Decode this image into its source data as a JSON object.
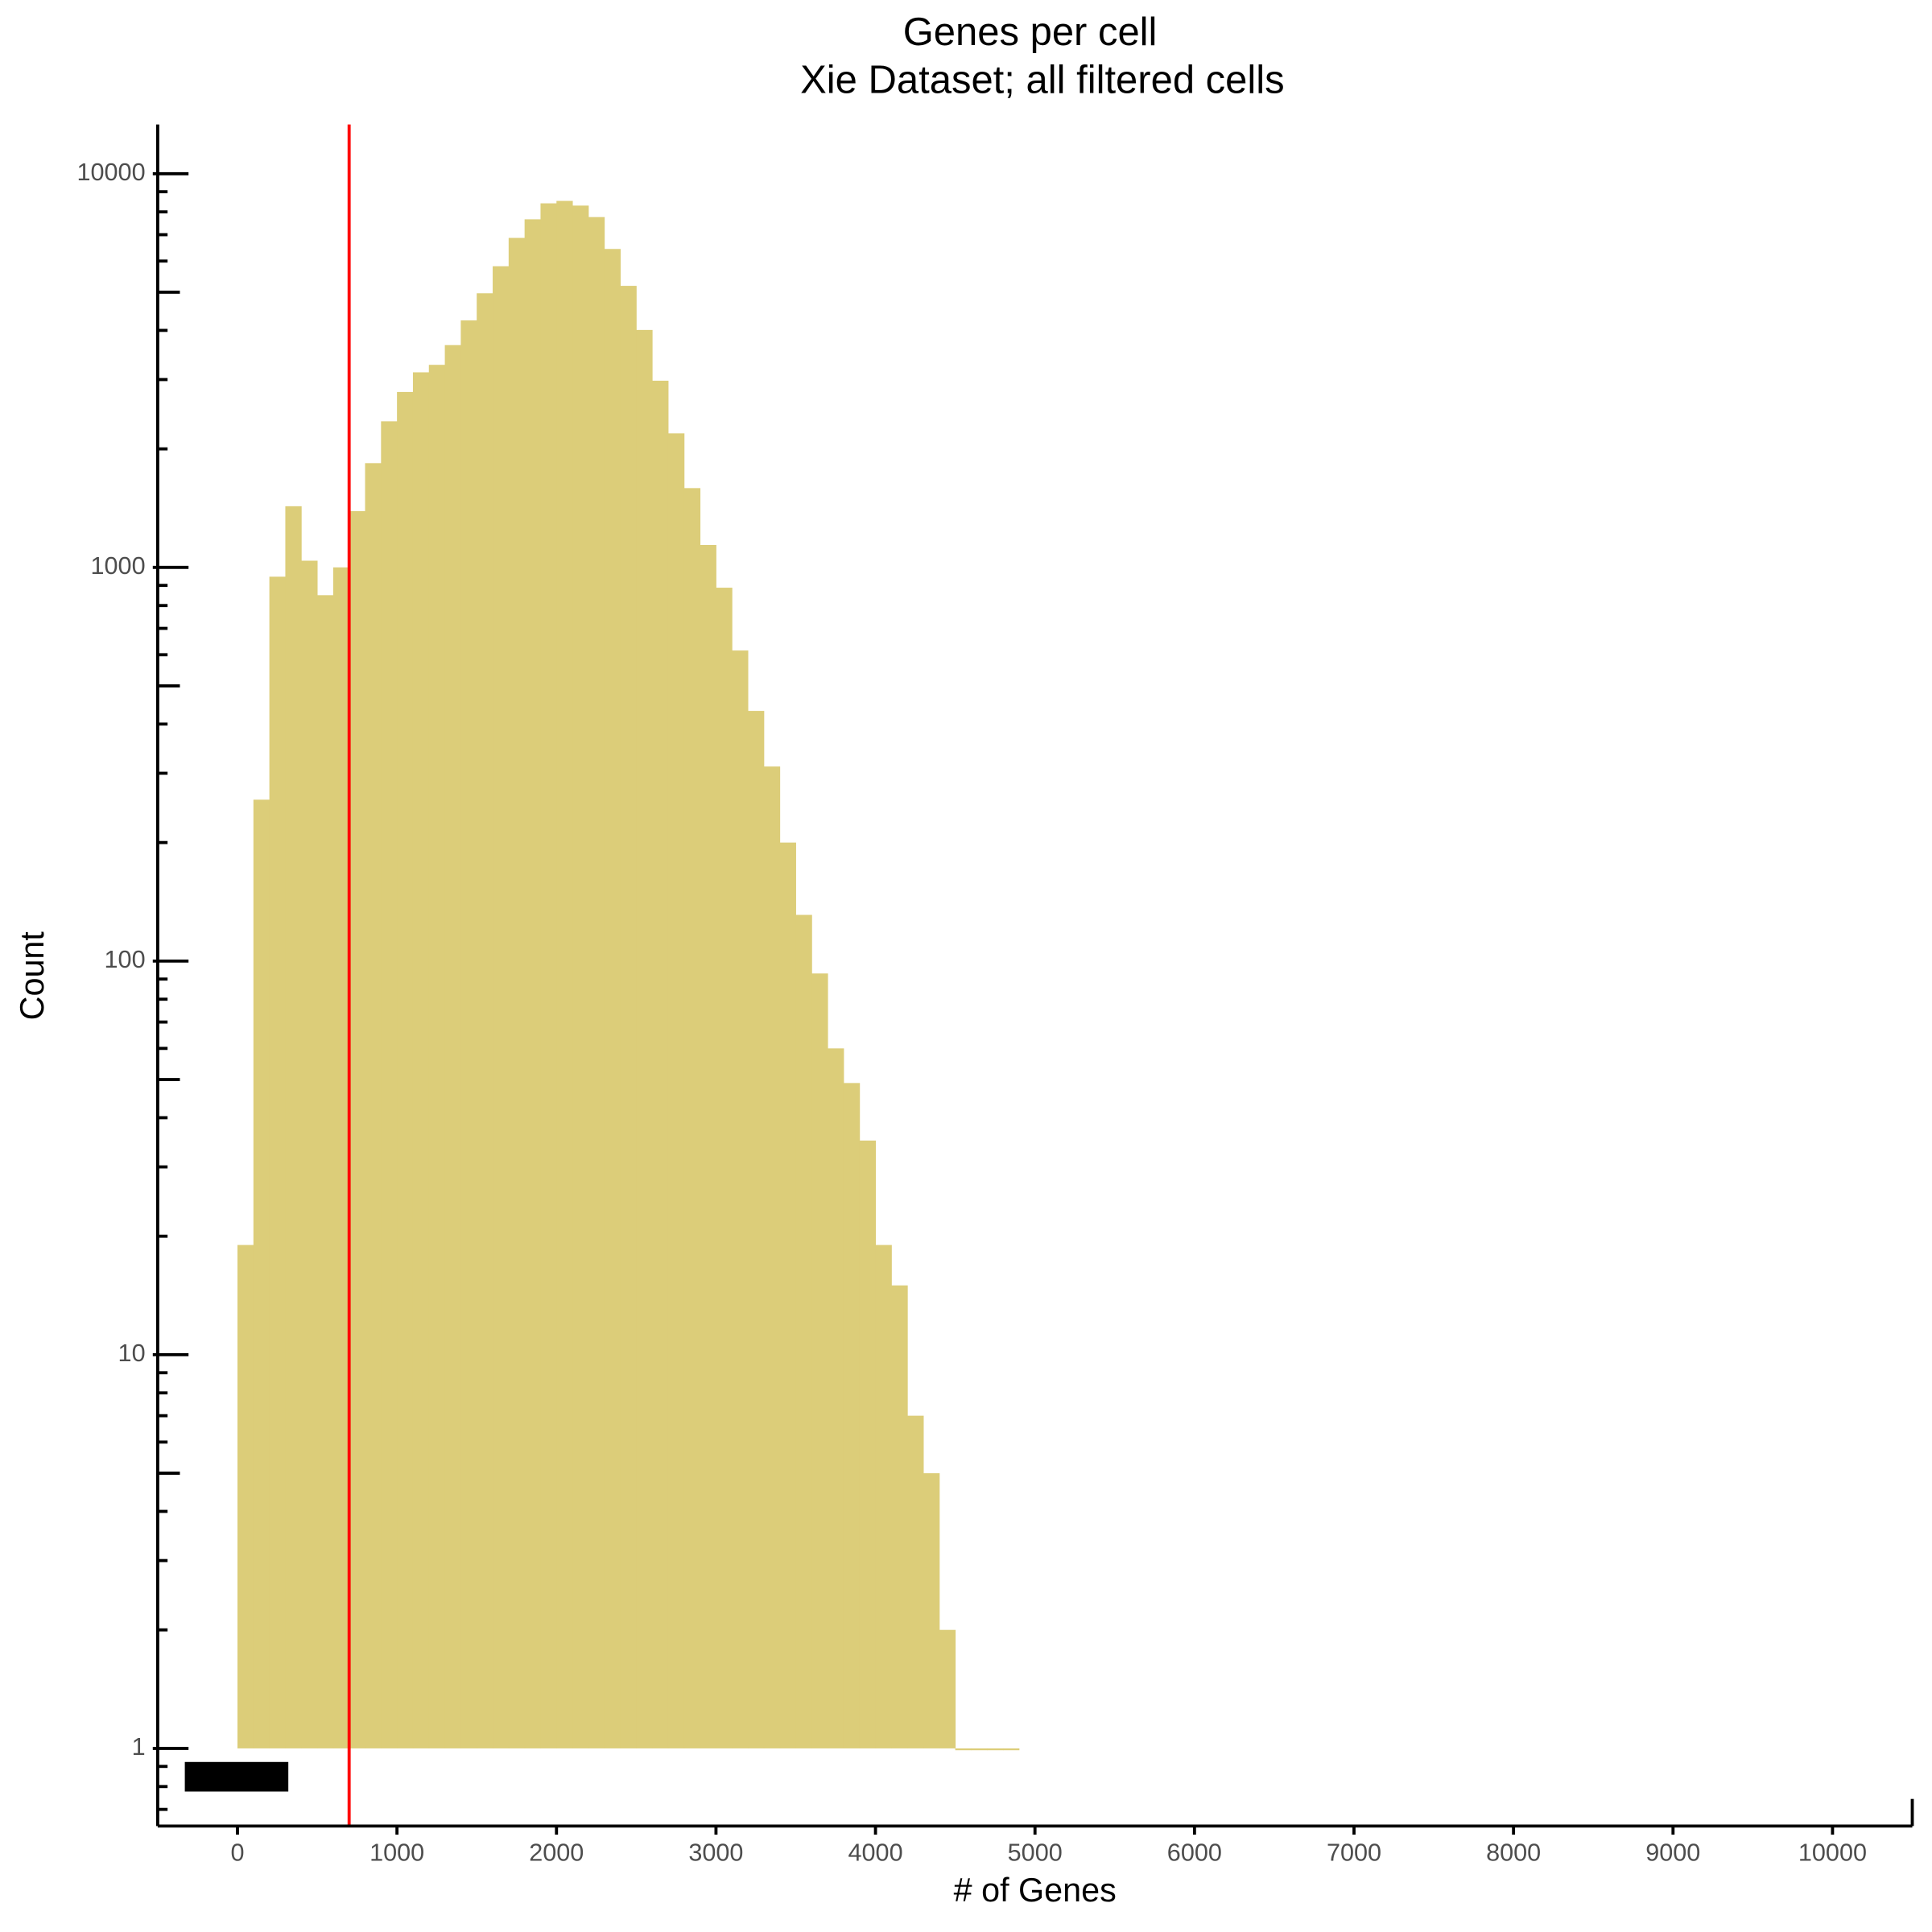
{
  "chart_data": {
    "type": "histogram",
    "title": "Genes per cell",
    "subtitle": "Xie Dataset; all filtered cells",
    "x_label": "# of Genes",
    "y_label": "Count",
    "bins": [
      0,
      100,
      200,
      300,
      400,
      500,
      600,
      700,
      800,
      900,
      1000,
      1100,
      1200,
      1300,
      1400,
      1500,
      1600,
      1700,
      1800,
      1900,
      2000,
      2100,
      2200,
      2300,
      2400,
      2500,
      2600,
      2700,
      2800,
      2900,
      3000,
      3100,
      3200,
      3300,
      3400,
      3500,
      3600,
      3700,
      3800,
      3900,
      4000,
      4100,
      4200,
      4300,
      4400,
      4500,
      4600,
      4700,
      4800,
      4900
    ],
    "values": [
      19,
      257,
      947,
      1430,
      1040,
      850,
      1000,
      1390,
      1840,
      2350,
      2790,
      3130,
      3270,
      3670,
      4240,
      4970,
      5820,
      6870,
      7660,
      8410,
      8530,
      8300,
      7760,
      6440,
      5190,
      4010,
      2980,
      2190,
      1590,
      1140,
      888,
      615,
      432,
      312,
      200,
      131,
      93,
      60,
      49,
      35,
      19,
      15,
      7,
      5,
      2,
      1,
      1,
      1,
      1
    ],
    "color": "#dccd79",
    "vline": {
      "value": 700,
      "color": "#ff0000"
    },
    "xlim": [
      -500,
      10500
    ],
    "xticks": [
      0,
      1000,
      2000,
      3000,
      4000,
      5000,
      6000,
      7000,
      8000,
      9000,
      10000
    ],
    "ylim": [
      0.635,
      13340
    ],
    "yticks": [
      1,
      10,
      100,
      1000,
      10000
    ],
    "log_y": true
  }
}
